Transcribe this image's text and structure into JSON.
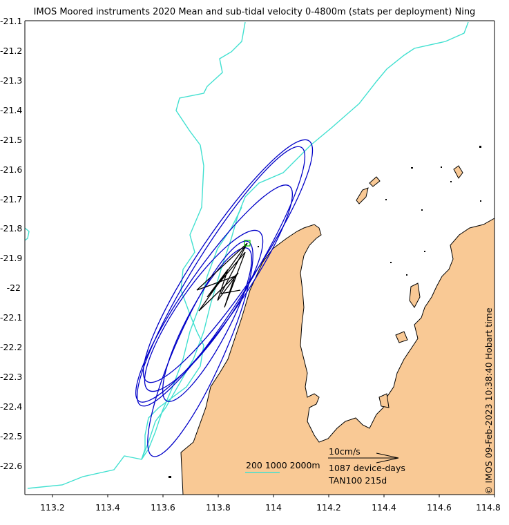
{
  "title": "IMOS Moored instruments 2020 Mean and sub-tidal velocity 0-4800m (stats per deployment) Ning",
  "footer_stamp": "© IMOS 09-Feb-2023 10:38:40 Hobart time",
  "axes": {
    "x_ticks": [
      "113.2",
      "113.4",
      "113.6",
      "113.8",
      "114",
      "114.2",
      "114.4",
      "114.6",
      "114.8"
    ],
    "y_ticks": [
      "-21.1",
      "-21.2",
      "-21.3",
      "-21.4",
      "-21.5",
      "-21.6",
      "-21.7",
      "-21.8",
      "-21.9",
      "-22",
      "-22.1",
      "-22.2",
      "-22.3",
      "-22.4",
      "-22.5",
      "-22.6"
    ],
    "x_range": [
      113.1,
      114.8
    ],
    "y_range": [
      -22.7,
      -21.1
    ]
  },
  "legend": {
    "isobaths_label": "200 1000 2000m",
    "scale_label": "10cm/s",
    "device_days": "1087 device-days",
    "station_label": "TAN100 215d"
  },
  "colors": {
    "land": "#f9c995",
    "isobath": "#40e0d0",
    "ellipse": "#0000c8",
    "mooring": "#00c000",
    "vectors": "#000000"
  },
  "mooring": {
    "lon": 113.9,
    "lat": -21.85
  }
}
